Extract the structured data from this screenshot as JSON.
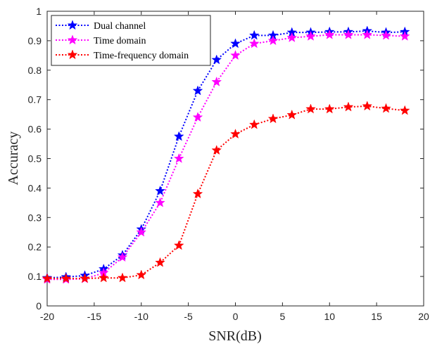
{
  "chart_data": {
    "type": "line",
    "xlabel": "SNR(dB)",
    "ylabel": "Accuracy",
    "xlim": [
      -20,
      20
    ],
    "ylim": [
      0,
      1
    ],
    "xticks": [
      "-20",
      "-15",
      "-10",
      "-5",
      "0",
      "5",
      "10",
      "15",
      "20"
    ],
    "yticks": [
      "0",
      "0.1",
      "0.2",
      "0.3",
      "0.4",
      "0.5",
      "0.6",
      "0.7",
      "0.8",
      "0.9",
      "1"
    ],
    "grid": false,
    "legend_position": "top-left",
    "x": [
      -20,
      -18,
      -16,
      -14,
      -12,
      -10,
      -8,
      -6,
      -4,
      -2,
      0,
      2,
      4,
      6,
      8,
      10,
      12,
      14,
      16,
      18
    ],
    "series": [
      {
        "name": "Dual channel",
        "color": "#0000ff",
        "marker": "star",
        "line_style": "dotted",
        "values": [
          0.095,
          0.098,
          0.103,
          0.125,
          0.172,
          0.26,
          0.39,
          0.575,
          0.73,
          0.835,
          0.89,
          0.918,
          0.918,
          0.928,
          0.928,
          0.93,
          0.93,
          0.933,
          0.928,
          0.93
        ]
      },
      {
        "name": "Time domain",
        "color": "#ff00ff",
        "marker": "star",
        "line_style": "dotted",
        "values": [
          0.09,
          0.09,
          0.092,
          0.112,
          0.165,
          0.25,
          0.35,
          0.5,
          0.64,
          0.76,
          0.85,
          0.89,
          0.9,
          0.91,
          0.915,
          0.92,
          0.92,
          0.92,
          0.918,
          0.915
        ]
      },
      {
        "name": "Time-frequency domain",
        "color": "#ff0000",
        "marker": "star",
        "line_style": "dotted",
        "values": [
          0.093,
          0.093,
          0.093,
          0.095,
          0.095,
          0.105,
          0.147,
          0.205,
          0.38,
          0.528,
          0.583,
          0.615,
          0.635,
          0.648,
          0.668,
          0.668,
          0.675,
          0.678,
          0.67,
          0.663
        ]
      }
    ]
  }
}
